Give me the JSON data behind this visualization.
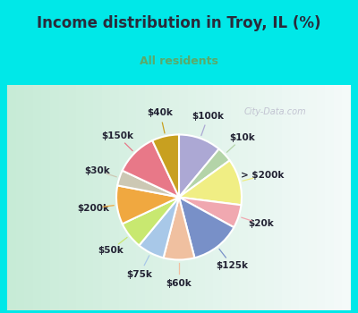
{
  "title": "Income distribution in Troy, IL (%)",
  "subtitle": "All residents",
  "title_color": "#2a2a3a",
  "subtitle_color": "#5aaa6a",
  "watermark": "City-Data.com",
  "background_outer": "#00e8e8",
  "background_inner_left": "#c8e8d8",
  "background_inner_right": "#e8f8f0",
  "labels": [
    "$100k",
    "$10k",
    "> $200k",
    "$20k",
    "$125k",
    "$60k",
    "$75k",
    "$50k",
    "$200k",
    "$30k",
    "$150k",
    "$40k"
  ],
  "values": [
    11,
    4,
    12,
    6,
    13,
    8,
    7,
    7,
    10,
    4,
    11,
    7
  ],
  "colors": [
    "#aca8d4",
    "#b4d4a8",
    "#f0ee84",
    "#f0a8b0",
    "#7890c8",
    "#f0c0a0",
    "#a8c8e8",
    "#c8e870",
    "#f0a840",
    "#ccc8b4",
    "#e87888",
    "#c8a020"
  ],
  "wedge_edge_color": "white",
  "wedge_linewidth": 1.5,
  "title_fontsize": 12,
  "subtitle_fontsize": 9,
  "label_fontsize": 7.5
}
